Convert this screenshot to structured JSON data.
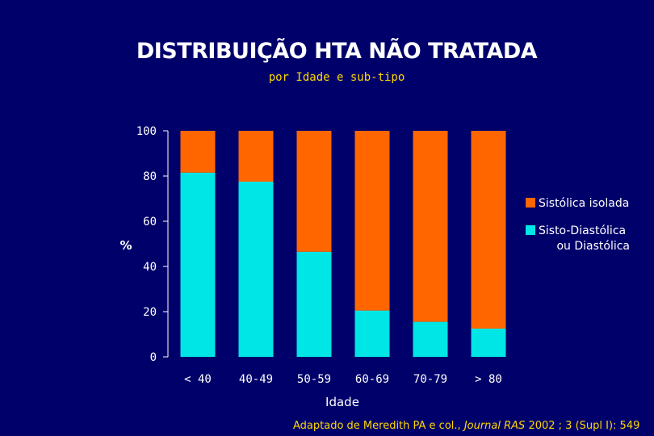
{
  "colors": {
    "background": "#00006b",
    "sistolica": "#ff6600",
    "sisto_diastolica": "#00e5e5",
    "text": "#ffffff",
    "accent": "#ffd700"
  },
  "footer": {
    "prefix": "Adaptado de Meredith PA e col.,",
    "journal": "Journal RAS",
    "suffix": "2002 ; 3 (Supl I): 549"
  },
  "chart_data": {
    "type": "bar",
    "stacked": true,
    "title": "DISTRIBUIÇÃO HTA NÃO TRATADA",
    "subtitle": "por Idade e sub-tipo",
    "xlabel": "Idade",
    "ylabel": "%",
    "ylim": [
      0,
      100
    ],
    "yticks": [
      "0",
      "20",
      "40",
      "60",
      "80",
      "100"
    ],
    "categories": [
      "< 40",
      "40-49",
      "50-59",
      "60-69",
      "70-79",
      "> 80"
    ],
    "series": [
      {
        "name": "Sisto-Diastólica ou Diastólica",
        "legend_lines": [
          "Sisto-Diastólica",
          "ou Diastólica"
        ],
        "color": "#00e5e5",
        "values": [
          81.5,
          77.5,
          46.5,
          20.5,
          15.5,
          12.5
        ]
      },
      {
        "name": "Sistólica isolada",
        "legend_lines": [
          "Sistólica isolada"
        ],
        "color": "#ff6600",
        "values": [
          18.5,
          22.5,
          53.5,
          79.5,
          84.5,
          87.5
        ]
      }
    ],
    "legend": {
      "position": "right",
      "order": [
        "Sistólica isolada",
        "Sisto-Diastólica ou Diastólica"
      ]
    },
    "grid": false
  }
}
